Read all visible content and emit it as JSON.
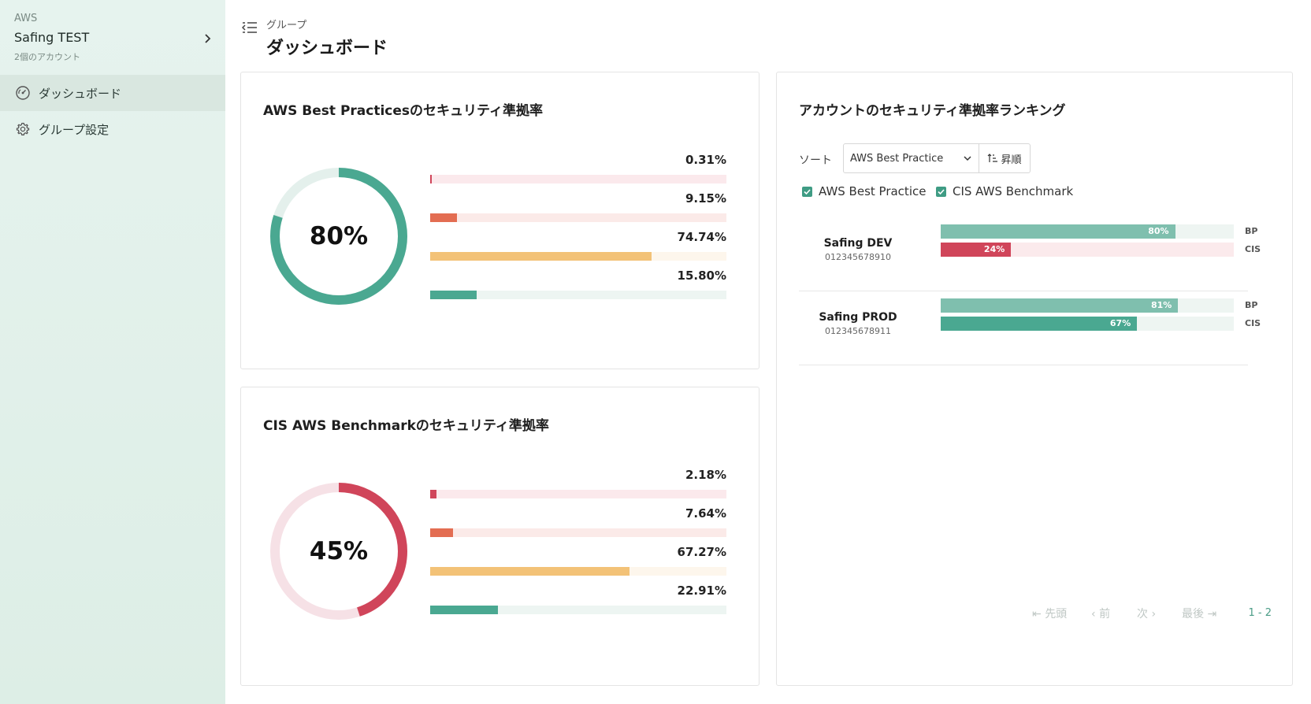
{
  "sidebar": {
    "provider": "AWS",
    "org_name": "Safing TEST",
    "org_sub": "2個のアカウント",
    "items": [
      {
        "label": "ダッシュボード",
        "icon": "dashboard-gauge-icon",
        "active": true
      },
      {
        "label": "グループ設定",
        "icon": "gear-icon",
        "active": false
      }
    ]
  },
  "header": {
    "breadcrumb": "グループ",
    "title": "ダッシュボード"
  },
  "colors": {
    "accent": "#3f9c84",
    "critical": "#d0455a",
    "high": "#e36d52",
    "medium": "#f3c277",
    "low": "#4aa891"
  },
  "bp_card": {
    "title": "AWS Best Practicesのセキュリティ準拠率",
    "score": "80%",
    "score_value": 80,
    "breakdown": [
      {
        "label": "0.31%",
        "value": 0.31
      },
      {
        "label": "9.15%",
        "value": 9.15
      },
      {
        "label": "74.74%",
        "value": 74.74
      },
      {
        "label": "15.80%",
        "value": 15.8
      }
    ]
  },
  "cis_card": {
    "title": "CIS AWS Benchmarkのセキュリティ準拠率",
    "score": "45%",
    "score_value": 45,
    "breakdown": [
      {
        "label": "2.18%",
        "value": 2.18
      },
      {
        "label": "7.64%",
        "value": 7.64
      },
      {
        "label": "67.27%",
        "value": 67.27
      },
      {
        "label": "22.91%",
        "value": 22.91
      }
    ]
  },
  "ranking": {
    "title": "アカウントのセキュリティ準拠率ランキング",
    "sort_label": "ソート",
    "sort_value": "AWS Best Practice",
    "sort_order": "昇順",
    "filters": [
      {
        "label": "AWS Best Practice",
        "checked": true
      },
      {
        "label": "CIS AWS Benchmark",
        "checked": true
      }
    ],
    "accounts": [
      {
        "name": "Safing DEV",
        "id": "012345678910",
        "bp": {
          "label": "80%",
          "value": 80,
          "key": "BP"
        },
        "cis": {
          "label": "24%",
          "value": 24,
          "key": "CIS"
        }
      },
      {
        "name": "Safing PROD",
        "id": "012345678911",
        "bp": {
          "label": "81%",
          "value": 81,
          "key": "BP"
        },
        "cis": {
          "label": "67%",
          "value": 67,
          "key": "CIS"
        }
      }
    ],
    "pager": {
      "first": "先頭",
      "prev": "前",
      "next": "次",
      "last": "最後",
      "count": "1 - 2"
    }
  }
}
